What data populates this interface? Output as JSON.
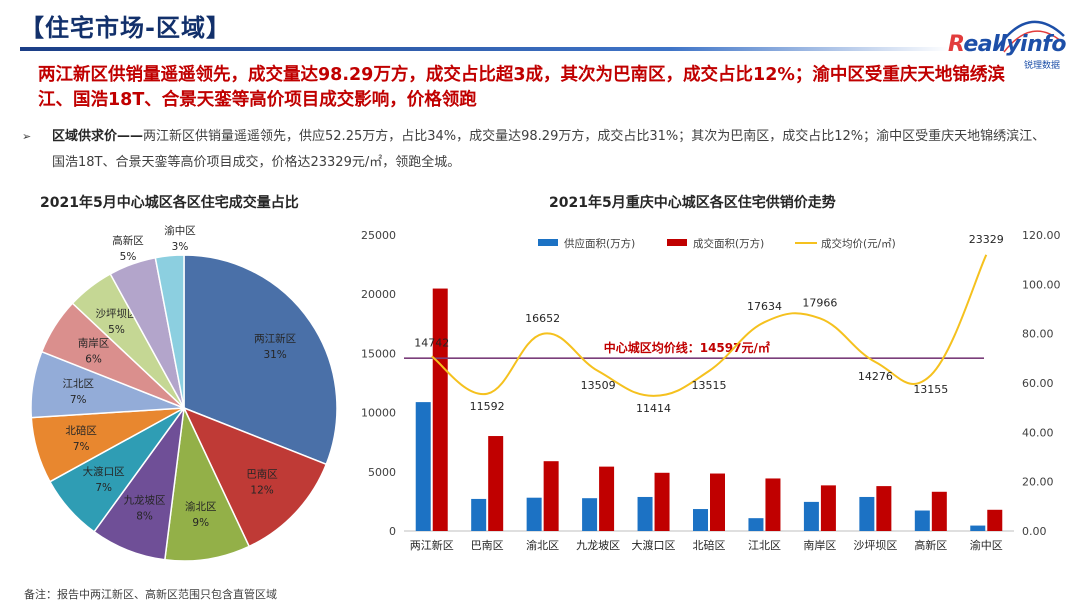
{
  "page_title": "【住宅市场-区域】",
  "logo": {
    "text_main": "eallyinfo",
    "text_r": "R",
    "subtitle": "锐理数据"
  },
  "headline": "两江新区供销量遥遥领先，成交量达98.29万方，成交占比超3成，其次为巴南区，成交占比12%；渝中区受重庆天地锦绣滨江、国浩18T、合景天銮等高价项目成交影响，价格领跑",
  "bullet": {
    "mark": "➢",
    "lead": "区域供求价——",
    "text": "两江新区供销量遥遥领先，供应52.25万方，占比34%，成交量达98.29万方，成交占比31%；其次为巴南区，成交占比12%；渝中区受重庆天地锦绣滨江、国浩18T、合景天銮等高价项目成交，价格达23329元/㎡，领跑全城。"
  },
  "footnote": "备注：报告中两江新区、高新区范围只包含直管区域",
  "chart_data": [
    {
      "type": "pie",
      "title": "2021年5月中心城区各区住宅成交量占比",
      "slices": [
        {
          "label": "两江新区",
          "percent_label": "31%",
          "value": 31,
          "color": "#4a70a8"
        },
        {
          "label": "巴南区",
          "percent_label": "12%",
          "value": 12,
          "color": "#bf3a36"
        },
        {
          "label": "渝北区",
          "percent_label": "9%",
          "value": 9,
          "color": "#93b048"
        },
        {
          "label": "九龙坡区",
          "percent_label": "8%",
          "value": 8,
          "color": "#6f4f97"
        },
        {
          "label": "大渡口区",
          "percent_label": "7%",
          "value": 7,
          "color": "#2f9db4"
        },
        {
          "label": "北碚区",
          "percent_label": "7%",
          "value": 7,
          "color": "#e8872f"
        },
        {
          "label": "江北区",
          "percent_label": "7%",
          "value": 7,
          "color": "#93acd8"
        },
        {
          "label": "南岸区",
          "percent_label": "6%",
          "value": 6,
          "color": "#da8f8d"
        },
        {
          "label": "沙坪坝区",
          "percent_label": "5%",
          "value": 5,
          "color": "#c5d794"
        },
        {
          "label": "高新区",
          "percent_label": "5%",
          "value": 5,
          "color": "#b3a5cb"
        },
        {
          "label": "渝中区",
          "percent_label": "3%",
          "value": 3,
          "color": "#8ccfe0"
        }
      ]
    },
    {
      "type": "bar",
      "title": "2021年5月重庆中心城区各区住宅供销价走势",
      "categories": [
        "两江新区",
        "巴南区",
        "渝北区",
        "九龙坡区",
        "大渡口区",
        "北碚区",
        "江北区",
        "南岸区",
        "沙坪坝区",
        "高新区",
        "渝中区"
      ],
      "series": [
        {
          "name": "供应面积(万方)",
          "type": "bar",
          "axis": "right",
          "color": "#1c72c4",
          "values": [
            52.25,
            13.0,
            13.5,
            13.3,
            13.8,
            8.9,
            5.2,
            11.8,
            13.8,
            8.3,
            2.2
          ]
        },
        {
          "name": "成交面积(万方)",
          "type": "bar",
          "axis": "right",
          "color": "#c00000",
          "values": [
            98.29,
            38.5,
            28.3,
            26.1,
            23.6,
            23.3,
            21.3,
            18.5,
            18.2,
            15.9,
            8.6
          ]
        },
        {
          "name": "成交均价(元/㎡)",
          "type": "line",
          "axis": "left",
          "color": "#f5c11e",
          "values": [
            14742,
            11592,
            16652,
            13509,
            11414,
            13515,
            17634,
            17966,
            14276,
            13155,
            23329
          ]
        }
      ],
      "data_labels": [
        "14742",
        "11592",
        "16652",
        "13509",
        "11414",
        "13515",
        "17634",
        "17966",
        "14276",
        "13155",
        "23329"
      ],
      "left_axis": {
        "min": 0,
        "max": 25000,
        "ticks": [
          "0",
          "5000",
          "10000",
          "15000",
          "20000",
          "25000"
        ]
      },
      "right_axis": {
        "min": 0,
        "max": 120,
        "ticks": [
          "0.00",
          "20.00",
          "40.00",
          "60.00",
          "80.00",
          "100.00",
          "120.00"
        ]
      },
      "avg_line": {
        "value": 14597,
        "label": "中心城区均价线：14597元/㎡",
        "color": "#7a3e7a"
      },
      "legend_position": "top"
    }
  ]
}
